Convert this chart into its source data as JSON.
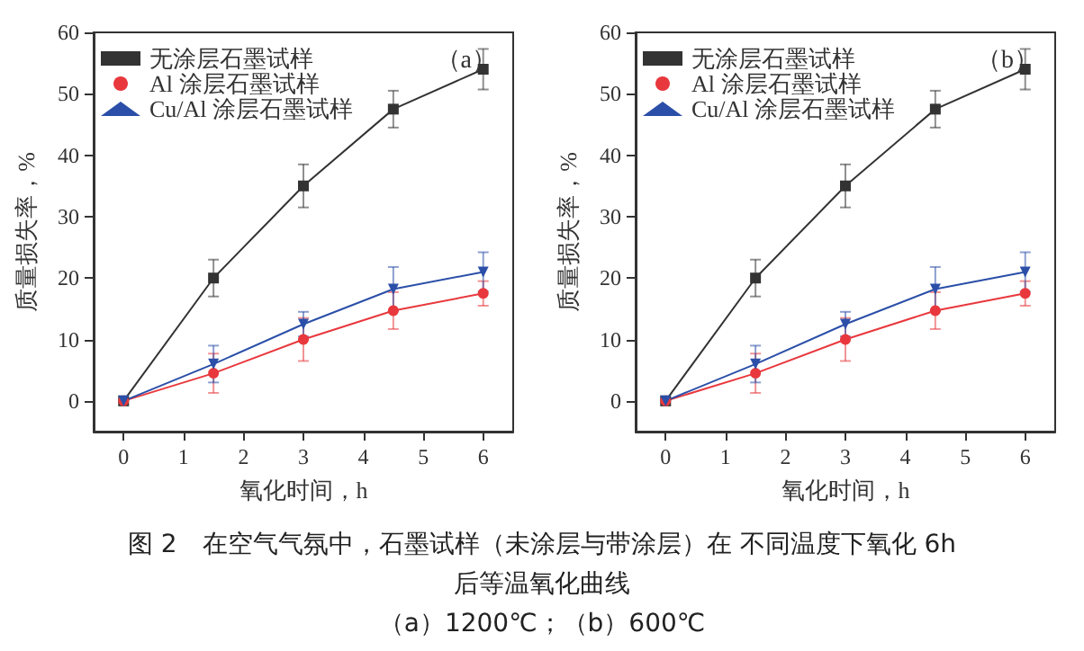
{
  "chart_data": [
    {
      "type": "line",
      "annotations": [
        "（a）",
        "图 2　在空气气氛中，石墨试样（未涂层与带涂层）在 不同温度下氧化 6h",
        "后等温氧化曲线",
        "（a）1200℃；（b）600℃"
      ],
      "xlabel": "氧化时间，h",
      "ylabel": "质量损失率，%",
      "x": [
        0,
        1.5,
        3,
        4.5,
        6
      ],
      "xlim": [
        -0.5,
        6.5
      ],
      "xticks": [
        0,
        1,
        2,
        3,
        4,
        5,
        6
      ],
      "ylim": [
        -5,
        60
      ],
      "yticks": [
        0,
        10,
        20,
        30,
        40,
        50,
        60
      ],
      "grid": false,
      "legend": "top left",
      "series": [
        {
          "name": "无涂层石墨试样",
          "color": "#333333",
          "marker": "square",
          "values": [
            0,
            20,
            35,
            47.5,
            54
          ],
          "errors": [
            null,
            3,
            3.5,
            3,
            3.3
          ]
        },
        {
          "name": "Al 涂层石墨试样",
          "color": "#e8383d",
          "marker": "circle",
          "values": [
            0,
            4.5,
            10,
            14.7,
            17.5
          ],
          "errors": [
            null,
            3.2,
            3.5,
            3,
            2
          ]
        },
        {
          "name": "Cu/Al 涂层石墨试样",
          "color": "#2b4fa8",
          "marker": "triangle",
          "values": [
            0,
            6,
            12.5,
            18.2,
            21
          ],
          "errors": [
            null,
            3,
            2,
            3.6,
            3.2
          ]
        }
      ]
    },
    {
      "type": "line",
      "annotations": [
        "（b）"
      ],
      "xlabel": "氧化时间，h",
      "ylabel": "质量损失率，%",
      "x": [
        0,
        1.5,
        3,
        4.5,
        6
      ],
      "xlim": [
        -0.5,
        6.5
      ],
      "xticks": [
        0,
        1,
        2,
        3,
        4,
        5,
        6
      ],
      "ylim": [
        -5,
        60
      ],
      "yticks": [
        0,
        10,
        20,
        30,
        40,
        50,
        60
      ],
      "grid": false,
      "legend": "top left",
      "series": [
        {
          "name": "无涂层石墨试样",
          "color": "#333333",
          "marker": "square",
          "values": [
            0,
            20,
            35,
            47.5,
            54
          ],
          "errors": [
            null,
            3,
            3.5,
            3,
            3.3
          ]
        },
        {
          "name": "Al 涂层石墨试样",
          "color": "#e8383d",
          "marker": "circle",
          "values": [
            0,
            4.5,
            10,
            14.7,
            17.5
          ],
          "errors": [
            null,
            3.2,
            3.5,
            3,
            2
          ]
        },
        {
          "name": "Cu/Al 涂层石墨试样",
          "color": "#2b4fa8",
          "marker": "triangle",
          "values": [
            0,
            6,
            12.5,
            18.2,
            21
          ],
          "errors": [
            null,
            3,
            2,
            3.6,
            3.2
          ]
        }
      ]
    }
  ]
}
